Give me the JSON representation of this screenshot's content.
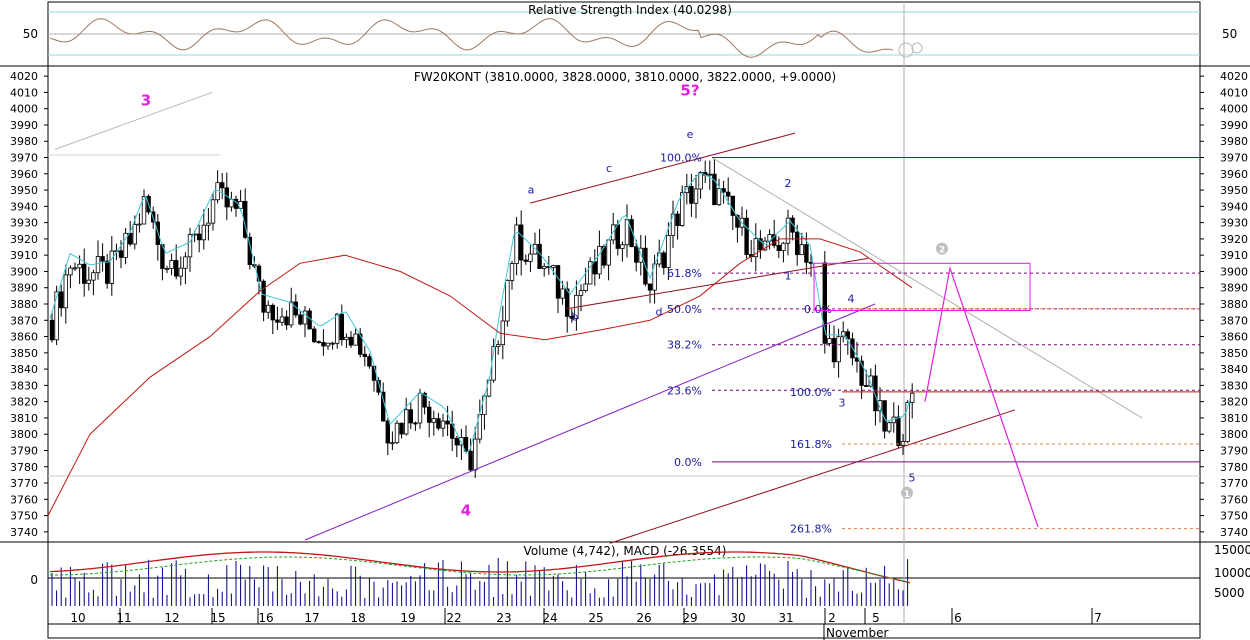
{
  "rsi_panel": {
    "title": "Relative Strength Index (40.0298)",
    "level_label": "50",
    "series_color": "#a07860"
  },
  "price_panel": {
    "title": "FW20KONT (3810.0000, 3828.0000, 3810.0000, 3822.0000, +9.0000)",
    "ymin": 3735,
    "ymax": 4025,
    "y_ticks": [
      4020,
      4010,
      4000,
      3990,
      3980,
      3970,
      3960,
      3950,
      3940,
      3930,
      3920,
      3910,
      3900,
      3890,
      3880,
      3870,
      3860,
      3850,
      3840,
      3830,
      3820,
      3810,
      3800,
      3790,
      3780,
      3770,
      3760,
      3750,
      3740
    ],
    "wave_labels": [
      {
        "text": "3",
        "x": "10-11",
        "y": 4002,
        "color": "#e020e0",
        "big": true
      },
      {
        "text": "4",
        "x": "22",
        "y": 3750,
        "color": "#e020e0",
        "big": true
      },
      {
        "text": "5?",
        "x": "29",
        "y": 4008,
        "color": "#e020e0",
        "big": true
      },
      {
        "text": "a",
        "x": "24",
        "y": 3948,
        "color": "#1a1aa0"
      },
      {
        "text": "b",
        "x": "24-25",
        "y": 3870,
        "color": "#1a1aa0"
      },
      {
        "text": "c",
        "x": "25-26",
        "y": 3961,
        "color": "#1a1aa0"
      },
      {
        "text": "d",
        "x": "27",
        "y": 3873,
        "color": "#1a1aa0"
      },
      {
        "text": "e",
        "x": "29",
        "y": 3982,
        "color": "#1a1aa0"
      },
      {
        "text": "1",
        "x": "31",
        "y": 3895,
        "color": "#1a1aa0"
      },
      {
        "text": "2",
        "x": "31",
        "y": 3952,
        "color": "#1a1aa0"
      },
      {
        "text": "3",
        "x": "2",
        "y": 3817,
        "color": "#1a1aa0"
      },
      {
        "text": "4",
        "x": "2-5",
        "y": 3881,
        "color": "#1a1aa0"
      },
      {
        "text": "5",
        "x": "5",
        "y": 3771,
        "color": "#1a1aa0"
      }
    ],
    "fib_upper": [
      {
        "label": "100.0%",
        "value": 3970
      },
      {
        "label": "61.8%",
        "value": 3899
      },
      {
        "label": "50.0%",
        "value": 3877
      },
      {
        "label": "38.2%",
        "value": 3855
      },
      {
        "label": "23.6%",
        "value": 3827
      },
      {
        "label": "0.0%",
        "value": 3783
      }
    ],
    "fib_lower": [
      {
        "label": "0.0%",
        "value": 3877
      },
      {
        "label": "100.0%",
        "value": 3826
      },
      {
        "label": "161.8%",
        "value": 3794
      },
      {
        "label": "261.8%",
        "value": 3742
      }
    ],
    "ellipse_labels": [
      {
        "text": "1",
        "x": "5",
        "y": 3764
      },
      {
        "text": "2",
        "x": "5-6",
        "y": 3914
      }
    ]
  },
  "volume_panel": {
    "title": "Volume (4,742), MACD (-26.3554)",
    "left_label": "0",
    "right_ticks": [
      "15000",
      "10000",
      "5000"
    ]
  },
  "x_axis": {
    "labels": [
      "10",
      "11",
      "12",
      "15",
      "16",
      "17",
      "18",
      "19",
      "22",
      "23",
      "24",
      "25",
      "26",
      "29",
      "30",
      "31",
      "2",
      "5",
      "6",
      "7"
    ],
    "month_label": "November"
  }
}
